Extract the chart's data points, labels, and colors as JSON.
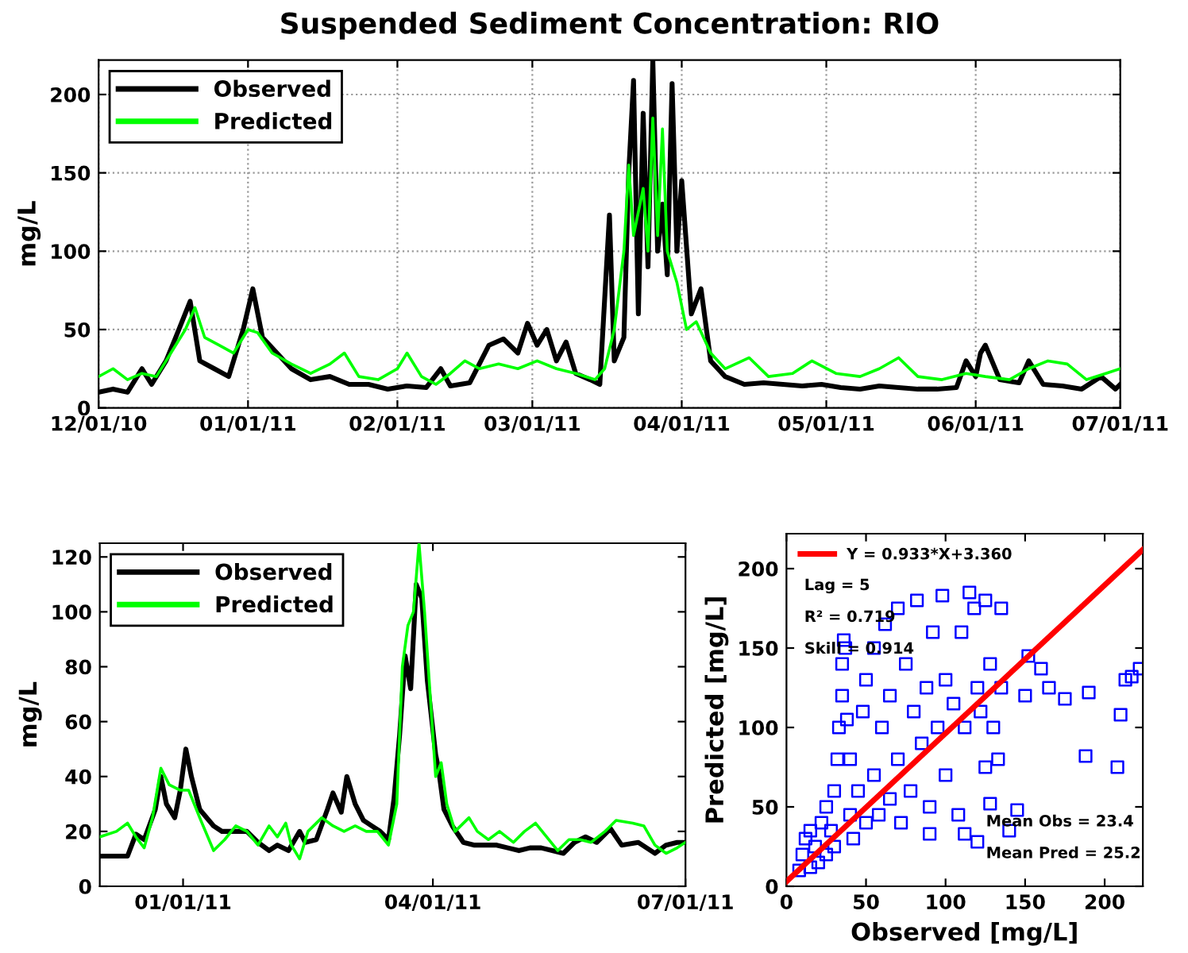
{
  "chart_data": [
    {
      "type": "line",
      "title": "Suspended Sediment Concentration: RIO",
      "ylabel": "mg/L",
      "xlim": [
        "2010-12-01",
        "2011-07-01"
      ],
      "ylim": [
        0,
        222
      ],
      "xticks": [
        {
          "value": "2010-12-01",
          "label": "12/01/10"
        },
        {
          "value": "2011-01-01",
          "label": "01/01/11"
        },
        {
          "value": "2011-02-01",
          "label": "02/01/11"
        },
        {
          "value": "2011-03-01",
          "label": "03/01/11"
        },
        {
          "value": "2011-04-01",
          "label": "04/01/11"
        },
        {
          "value": "2011-05-01",
          "label": "05/01/11"
        },
        {
          "value": "2011-06-01",
          "label": "06/01/11"
        },
        {
          "value": "2011-07-01",
          "label": "07/01/11"
        }
      ],
      "yticks": [
        0,
        50,
        100,
        150,
        200
      ],
      "grid": true,
      "legend": "top left",
      "series": [
        {
          "name": "Observed",
          "color": "#000000",
          "x": [
            "2010-12-01",
            "2010-12-04",
            "2010-12-07",
            "2010-12-10",
            "2010-12-12",
            "2010-12-15",
            "2010-12-17",
            "2010-12-20",
            "2010-12-22",
            "2010-12-25",
            "2010-12-28",
            "2010-12-31",
            "2011-01-02",
            "2011-01-04",
            "2011-01-07",
            "2011-01-10",
            "2011-01-14",
            "2011-01-18",
            "2011-01-22",
            "2011-01-26",
            "2011-01-30",
            "2011-02-03",
            "2011-02-07",
            "2011-02-10",
            "2011-02-12",
            "2011-02-16",
            "2011-02-20",
            "2011-02-23",
            "2011-02-26",
            "2011-02-28",
            "2011-03-02",
            "2011-03-04",
            "2011-03-06",
            "2011-03-08",
            "2011-03-10",
            "2011-03-13",
            "2011-03-15",
            "2011-03-17",
            "2011-03-18",
            "2011-03-20",
            "2011-03-21",
            "2011-03-22",
            "2011-03-23",
            "2011-03-24",
            "2011-03-25",
            "2011-03-26",
            "2011-03-27",
            "2011-03-28",
            "2011-03-29",
            "2011-03-30",
            "2011-03-31",
            "2011-04-01",
            "2011-04-03",
            "2011-04-05",
            "2011-04-07",
            "2011-04-10",
            "2011-04-14",
            "2011-04-18",
            "2011-04-22",
            "2011-04-26",
            "2011-04-30",
            "2011-05-04",
            "2011-05-08",
            "2011-05-12",
            "2011-05-16",
            "2011-05-20",
            "2011-05-24",
            "2011-05-28",
            "2011-05-30",
            "2011-06-01",
            "2011-06-02",
            "2011-06-03",
            "2011-06-06",
            "2011-06-10",
            "2011-06-12",
            "2011-06-15",
            "2011-06-19",
            "2011-06-23",
            "2011-06-27",
            "2011-06-30",
            "2011-07-01"
          ],
          "values": [
            10,
            12,
            10,
            25,
            15,
            30,
            45,
            68,
            30,
            25,
            20,
            50,
            76,
            45,
            35,
            25,
            18,
            20,
            15,
            15,
            12,
            14,
            13,
            25,
            14,
            16,
            40,
            44,
            35,
            54,
            40,
            50,
            30,
            42,
            22,
            18,
            15,
            123,
            30,
            45,
            150,
            209,
            60,
            188,
            90,
            222,
            100,
            130,
            85,
            207,
            100,
            145,
            60,
            76,
            30,
            20,
            15,
            16,
            15,
            14,
            15,
            13,
            12,
            14,
            13,
            12,
            12,
            13,
            30,
            20,
            35,
            40,
            18,
            16,
            30,
            15,
            14,
            12,
            20,
            12,
            15
          ]
        },
        {
          "name": "Predicted",
          "color": "#00ff00",
          "x": [
            "2010-12-01",
            "2010-12-04",
            "2010-12-07",
            "2010-12-10",
            "2010-12-13",
            "2010-12-16",
            "2010-12-19",
            "2010-12-21",
            "2010-12-23",
            "2010-12-26",
            "2010-12-29",
            "2011-01-01",
            "2011-01-03",
            "2011-01-06",
            "2011-01-10",
            "2011-01-14",
            "2011-01-18",
            "2011-01-21",
            "2011-01-24",
            "2011-01-28",
            "2011-02-01",
            "2011-02-03",
            "2011-02-06",
            "2011-02-09",
            "2011-02-12",
            "2011-02-15",
            "2011-02-18",
            "2011-02-22",
            "2011-02-26",
            "2011-03-02",
            "2011-03-06",
            "2011-03-10",
            "2011-03-14",
            "2011-03-16",
            "2011-03-18",
            "2011-03-20",
            "2011-03-21",
            "2011-03-22",
            "2011-03-24",
            "2011-03-25",
            "2011-03-26",
            "2011-03-27",
            "2011-03-28",
            "2011-03-29",
            "2011-03-31",
            "2011-04-02",
            "2011-04-04",
            "2011-04-07",
            "2011-04-10",
            "2011-04-15",
            "2011-04-19",
            "2011-04-24",
            "2011-04-28",
            "2011-05-03",
            "2011-05-08",
            "2011-05-12",
            "2011-05-16",
            "2011-05-20",
            "2011-05-25",
            "2011-05-30",
            "2011-06-03",
            "2011-06-08",
            "2011-06-12",
            "2011-06-16",
            "2011-06-20",
            "2011-06-24",
            "2011-06-28",
            "2011-07-01"
          ],
          "values": [
            20,
            25,
            18,
            22,
            20,
            35,
            50,
            64,
            45,
            40,
            35,
            50,
            48,
            35,
            28,
            22,
            28,
            35,
            20,
            18,
            25,
            35,
            20,
            15,
            22,
            30,
            25,
            28,
            25,
            30,
            25,
            22,
            18,
            25,
            50,
            100,
            155,
            110,
            140,
            100,
            185,
            110,
            178,
            100,
            80,
            50,
            55,
            35,
            25,
            32,
            20,
            22,
            30,
            22,
            20,
            25,
            32,
            20,
            18,
            22,
            20,
            18,
            25,
            30,
            28,
            18,
            22,
            25
          ]
        }
      ]
    },
    {
      "type": "line",
      "ylabel": "mg/L",
      "xlim": [
        "2010-12-02",
        "2011-07-01"
      ],
      "ylim": [
        0,
        125
      ],
      "xticks": [
        {
          "value": "2011-01-01",
          "label": "01/01/11"
        },
        {
          "value": "2011-04-01",
          "label": "04/01/11"
        },
        {
          "value": "2011-07-01",
          "label": "07/01/11"
        }
      ],
      "yticks": [
        0,
        20,
        40,
        60,
        80,
        100,
        120
      ],
      "legend": "top left",
      "series": [
        {
          "name": "Observed",
          "color": "#000000",
          "x": [
            "2010-12-02",
            "2010-12-12",
            "2010-12-15",
            "2010-12-18",
            "2010-12-22",
            "2010-12-24",
            "2010-12-26",
            "2010-12-29",
            "2010-12-31",
            "2011-01-02",
            "2011-01-04",
            "2011-01-07",
            "2011-01-12",
            "2011-01-15",
            "2011-01-20",
            "2011-01-24",
            "2011-01-28",
            "2011-02-01",
            "2011-02-04",
            "2011-02-08",
            "2011-02-12",
            "2011-02-14",
            "2011-02-18",
            "2011-02-22",
            "2011-02-24",
            "2011-02-27",
            "2011-03-01",
            "2011-03-04",
            "2011-03-07",
            "2011-03-10",
            "2011-03-13",
            "2011-03-16",
            "2011-03-18",
            "2011-03-20",
            "2011-03-22",
            "2011-03-24",
            "2011-03-26",
            "2011-03-28",
            "2011-03-30",
            "2011-04-02",
            "2011-04-03",
            "2011-04-05",
            "2011-04-08",
            "2011-04-12",
            "2011-04-16",
            "2011-04-20",
            "2011-04-24",
            "2011-04-28",
            "2011-05-02",
            "2011-05-06",
            "2011-05-10",
            "2011-05-14",
            "2011-05-18",
            "2011-05-22",
            "2011-05-26",
            "2011-05-30",
            "2011-06-04",
            "2011-06-08",
            "2011-06-14",
            "2011-06-20",
            "2011-06-24",
            "2011-06-28",
            "2011-07-01"
          ],
          "values": [
            11,
            11,
            19,
            17,
            28,
            40,
            30,
            25,
            35,
            50,
            40,
            28,
            22,
            20,
            20,
            20,
            16,
            13,
            15,
            13,
            20,
            16,
            17,
            28,
            34,
            27,
            40,
            30,
            24,
            22,
            20,
            17,
            32,
            55,
            84,
            72,
            110,
            105,
            75,
            48,
            43,
            28,
            22,
            16,
            15,
            15,
            15,
            14,
            13,
            14,
            14,
            13,
            12,
            16,
            18,
            16,
            21,
            15,
            16,
            12,
            15,
            16,
            16
          ]
        },
        {
          "name": "Predicted",
          "color": "#00ff00",
          "x": [
            "2010-12-02",
            "2010-12-08",
            "2010-12-12",
            "2010-12-15",
            "2010-12-18",
            "2010-12-21",
            "2010-12-24",
            "2010-12-27",
            "2010-12-31",
            "2011-01-03",
            "2011-01-07",
            "2011-01-12",
            "2011-01-16",
            "2011-01-20",
            "2011-01-24",
            "2011-01-28",
            "2011-02-01",
            "2011-02-04",
            "2011-02-07",
            "2011-02-09",
            "2011-02-12",
            "2011-02-15",
            "2011-02-20",
            "2011-02-24",
            "2011-02-28",
            "2011-03-04",
            "2011-03-08",
            "2011-03-12",
            "2011-03-16",
            "2011-03-19",
            "2011-03-21",
            "2011-03-23",
            "2011-03-25",
            "2011-03-27",
            "2011-03-29",
            "2011-03-31",
            "2011-04-02",
            "2011-04-04",
            "2011-04-06",
            "2011-04-09",
            "2011-04-14",
            "2011-04-17",
            "2011-04-21",
            "2011-04-25",
            "2011-04-30",
            "2011-05-04",
            "2011-05-08",
            "2011-05-12",
            "2011-05-16",
            "2011-05-20",
            "2011-05-24",
            "2011-05-28",
            "2011-06-02",
            "2011-06-06",
            "2011-06-12",
            "2011-06-16",
            "2011-06-20",
            "2011-06-24",
            "2011-06-28",
            "2011-07-01"
          ],
          "values": [
            18,
            20,
            23,
            18,
            14,
            25,
            43,
            37,
            35,
            35,
            25,
            13,
            17,
            22,
            20,
            15,
            22,
            18,
            23,
            15,
            10,
            20,
            25,
            22,
            20,
            22,
            20,
            20,
            15,
            30,
            80,
            95,
            100,
            125,
            100,
            70,
            40,
            45,
            30,
            20,
            25,
            20,
            17,
            20,
            16,
            20,
            23,
            18,
            13,
            17,
            17,
            16,
            20,
            24,
            23,
            22,
            15,
            12,
            14,
            16
          ]
        }
      ]
    },
    {
      "type": "scatter",
      "xlabel": "Observed [mg/L]",
      "ylabel": "Predicted [mg/L]",
      "xlim": [
        0,
        224
      ],
      "ylim": [
        0,
        222
      ],
      "xticks": [
        0,
        50,
        100,
        150,
        200
      ],
      "yticks": [
        0,
        50,
        100,
        150,
        200
      ],
      "legend": "top left",
      "annotations": [
        "Lag = 5",
        "R² = 0.719",
        "Skill = 0.914",
        "Mean Obs = 23.4",
        "Mean Pred = 25.2"
      ],
      "series": [
        {
          "type": "scatter",
          "marker": "square",
          "color": "#0000ff",
          "x": [
            8,
            10,
            12,
            15,
            15,
            18,
            20,
            22,
            25,
            25,
            28,
            30,
            30,
            32,
            33,
            35,
            35,
            36,
            37,
            38,
            40,
            40,
            42,
            45,
            48,
            50,
            50,
            55,
            55,
            58,
            60,
            62,
            65,
            65,
            70,
            70,
            72,
            75,
            78,
            80,
            82,
            85,
            88,
            90,
            92,
            95,
            98,
            100,
            100,
            105,
            108,
            110,
            112,
            115,
            118,
            120,
            122,
            125,
            125,
            128,
            130,
            133,
            135,
            135,
            140,
            145,
            150,
            152,
            160,
            165,
            175,
            188,
            190,
            208,
            210,
            213,
            217,
            222,
            128,
            120,
            112,
            90
          ],
          "values": [
            10,
            20,
            30,
            12,
            35,
            25,
            15,
            40,
            20,
            50,
            35,
            60,
            25,
            80,
            100,
            120,
            140,
            155,
            150,
            105,
            45,
            80,
            30,
            60,
            110,
            40,
            130,
            70,
            150,
            45,
            100,
            165,
            55,
            120,
            80,
            175,
            40,
            140,
            60,
            110,
            180,
            90,
            125,
            50,
            160,
            100,
            183,
            70,
            130,
            115,
            45,
            160,
            100,
            185,
            175,
            125,
            110,
            180,
            75,
            140,
            100,
            80,
            175,
            125,
            35,
            48,
            120,
            145,
            137,
            125,
            118,
            82,
            122,
            75,
            108,
            130,
            132,
            137,
            52,
            28,
            33,
            33
          ]
        },
        {
          "type": "line",
          "name": "Y = 0.933*X+3.360",
          "color": "#ff0000",
          "x": [
            0,
            224
          ],
          "values": [
            3,
            212
          ]
        }
      ]
    }
  ]
}
